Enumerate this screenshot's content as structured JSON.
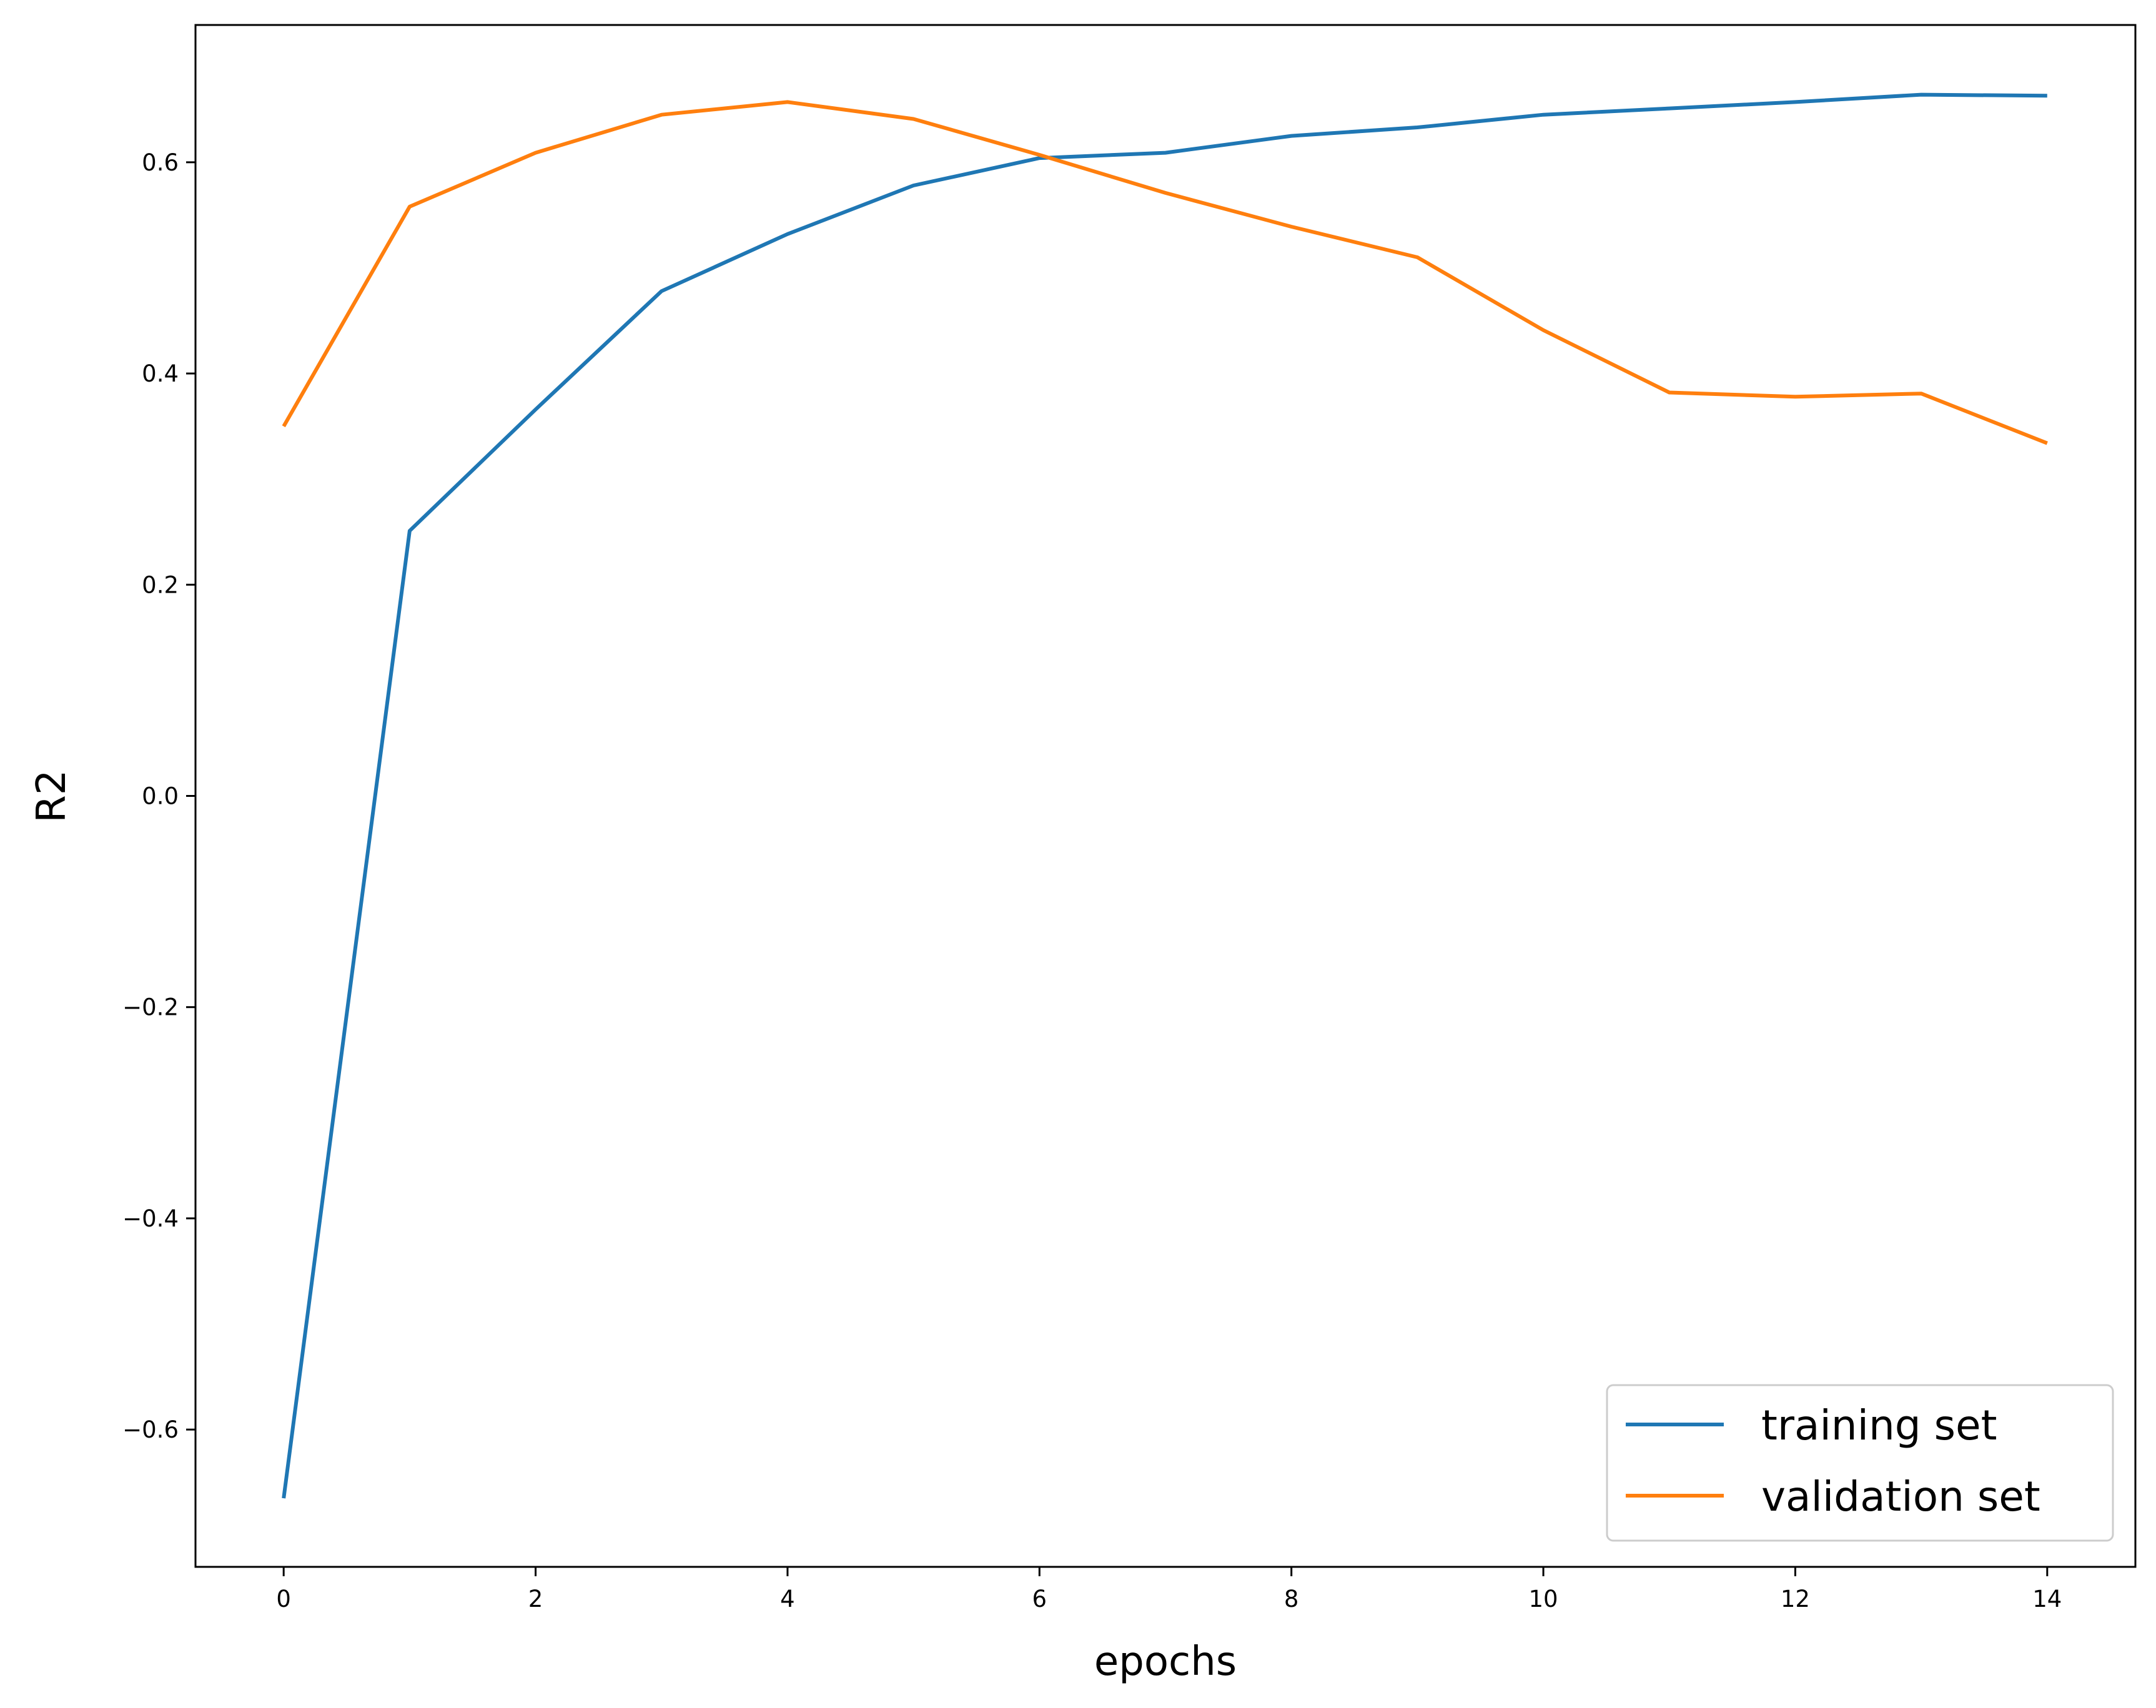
{
  "chart_data": {
    "type": "line",
    "title": "",
    "xlabel": "epochs",
    "ylabel": "R2",
    "x": [
      0,
      1,
      2,
      3,
      4,
      5,
      6,
      7,
      8,
      9,
      10,
      11,
      12,
      13,
      14
    ],
    "series": [
      {
        "name": "training set",
        "color": "#1f77b4",
        "values": [
          -0.665,
          0.251,
          0.366,
          0.478,
          0.532,
          0.578,
          0.604,
          0.609,
          0.625,
          0.633,
          0.645,
          0.651,
          0.657,
          0.664,
          0.663
        ]
      },
      {
        "name": "validation set",
        "color": "#ff7f0e",
        "values": [
          0.35,
          0.558,
          0.609,
          0.645,
          0.657,
          0.641,
          0.607,
          0.571,
          0.539,
          0.51,
          0.441,
          0.382,
          0.378,
          0.381,
          0.334
        ]
      }
    ],
    "xlim": [
      -0.7,
      14.7
    ],
    "ylim": [
      -0.73,
      0.73
    ],
    "xticks": [
      0,
      2,
      4,
      6,
      8,
      10,
      12,
      14
    ],
    "xtick_labels": [
      "0",
      "2",
      "4",
      "6",
      "8",
      "10",
      "12",
      "14"
    ],
    "yticks": [
      -0.6,
      -0.4,
      -0.2,
      0.0,
      0.2,
      0.4,
      0.6
    ],
    "ytick_labels": [
      "−0.6",
      "−0.4",
      "−0.2",
      "0.0",
      "0.2",
      "0.4",
      "0.6"
    ],
    "grid": false,
    "legend_position": "bottom-right"
  }
}
